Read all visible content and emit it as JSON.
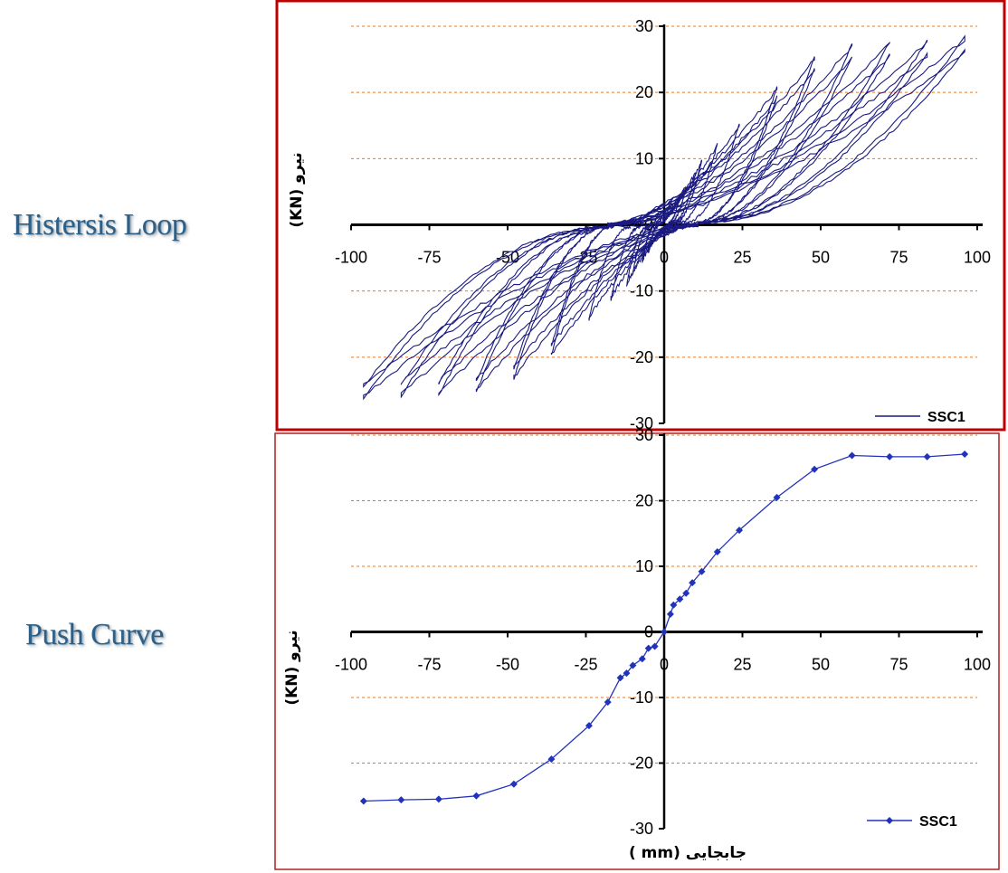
{
  "labels": {
    "top": "Histersis Loop",
    "bottom": "Push Curve"
  },
  "chart_data": [
    {
      "type": "line",
      "ylabel": "(KN) نیرو",
      "xlabel": "",
      "xlim": [
        -100,
        100
      ],
      "ylim": [
        -30,
        30
      ],
      "x_ticks": [
        -100,
        -75,
        -50,
        -25,
        0,
        25,
        50,
        75,
        100
      ],
      "y_ticks": [
        -30,
        -20,
        -10,
        0,
        10,
        20,
        30
      ],
      "grid": "horizontal dashed",
      "legend_position": "bottom-right",
      "series": [
        {
          "name": "SSC1",
          "color": "#1a1a80",
          "cycles": [
            {
              "amp": 5,
              "fmax": 4,
              "fmin": -4
            },
            {
              "amp": 7,
              "fmax": 5.5,
              "fmin": -5.5
            },
            {
              "amp": 10,
              "fmax": 7.5,
              "fmin": -7
            },
            {
              "amp": 12,
              "fmax": 9.5,
              "fmin": -9
            },
            {
              "amp": 17,
              "fmax": 12,
              "fmin": -11
            },
            {
              "amp": 24,
              "fmax": 15,
              "fmin": -14
            },
            {
              "amp": 36,
              "fmax": 20.5,
              "fmin": -19.5
            },
            {
              "amp": 48,
              "fmax": 25,
              "fmin": -23
            },
            {
              "amp": 60,
              "fmax": 27,
              "fmin": -25
            },
            {
              "amp": 72,
              "fmax": 27.3,
              "fmin": -25.5
            },
            {
              "amp": 84,
              "fmax": 27.5,
              "fmin": -25.6
            },
            {
              "amp": 96,
              "fmax": 28,
              "fmin": -25.9
            }
          ]
        }
      ]
    },
    {
      "type": "line",
      "ylabel": "(KN) نیرو",
      "xlabel": "( mm) جابجایی",
      "xlim": [
        -100,
        100
      ],
      "ylim": [
        -30,
        30
      ],
      "x_ticks": [
        -100,
        -75,
        -50,
        -25,
        0,
        25,
        50,
        75,
        100
      ],
      "y_ticks": [
        -30,
        -20,
        -10,
        0,
        10,
        20,
        30
      ],
      "grid": "horizontal dashed",
      "legend_position": "bottom-right",
      "series": [
        {
          "name": "SSC1",
          "color": "#2233bb",
          "x": [
            -96,
            -84,
            -72,
            -60,
            -48,
            -36,
            -24,
            -18,
            -14,
            -12,
            -10,
            -7,
            -5,
            -3,
            0,
            2,
            3,
            5,
            7,
            9,
            12,
            17,
            24,
            36,
            48,
            60,
            72,
            84,
            96
          ],
          "y": [
            -25.8,
            -25.6,
            -25.5,
            -25.0,
            -23.2,
            -19.4,
            -14.3,
            -10.7,
            -7.0,
            -6.3,
            -5.1,
            -4.1,
            -2.5,
            -2.2,
            0,
            2.7,
            4.1,
            5.0,
            5.9,
            7.5,
            9.2,
            12.2,
            15.5,
            20.5,
            24.8,
            26.9,
            26.7,
            26.7,
            27.1
          ]
        }
      ]
    }
  ]
}
